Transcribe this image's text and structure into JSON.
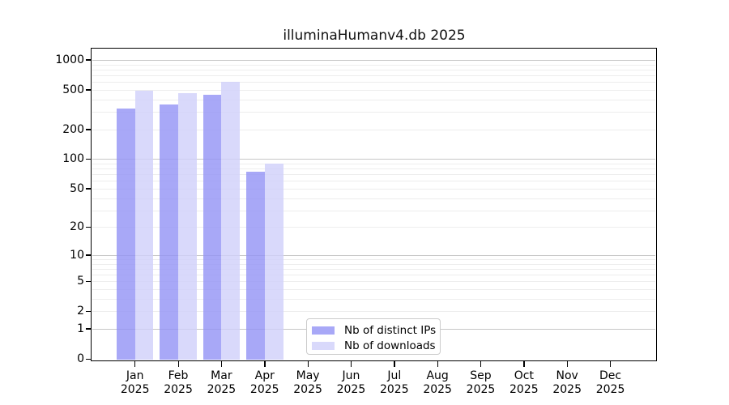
{
  "chart_data": {
    "type": "bar",
    "title": "illuminaHumanv4.db 2025",
    "categories": [
      "Jan",
      "Feb",
      "Mar",
      "Apr",
      "May",
      "Jun",
      "Jul",
      "Aug",
      "Sep",
      "Oct",
      "Nov",
      "Dec"
    ],
    "category_year": "2025",
    "series": [
      {
        "name": "Nb of distinct IPs",
        "color": "#9292f5",
        "net_color": "#a8a8f7",
        "fill_opacity": 0.8,
        "values": [
          322,
          357,
          446,
          75,
          0,
          0,
          0,
          0,
          0,
          0,
          0,
          0
        ]
      },
      {
        "name": "Nb of downloads",
        "color": "#d0d0fa",
        "net_color": "#d9d9fb",
        "fill_opacity": 0.8,
        "values": [
          491,
          465,
          606,
          90,
          0,
          0,
          0,
          0,
          0,
          0,
          0,
          0
        ]
      }
    ],
    "y_ticks": [
      0,
      1,
      2,
      5,
      10,
      20,
      50,
      100,
      200,
      500,
      1000
    ],
    "y_scale": "log1p",
    "ylim": [
      0,
      1300
    ],
    "xlabel": "",
    "ylabel": "",
    "grid": "horizontal major+minor",
    "legend_position": "lower center",
    "colors": {
      "major_grid": "#c6c6c6",
      "minor_grid": "#ededed",
      "axis": "#000000",
      "background": "#ffffff"
    }
  },
  "legend": {
    "items": [
      {
        "label": "Nb of distinct IPs"
      },
      {
        "label": "Nb of downloads"
      }
    ]
  }
}
